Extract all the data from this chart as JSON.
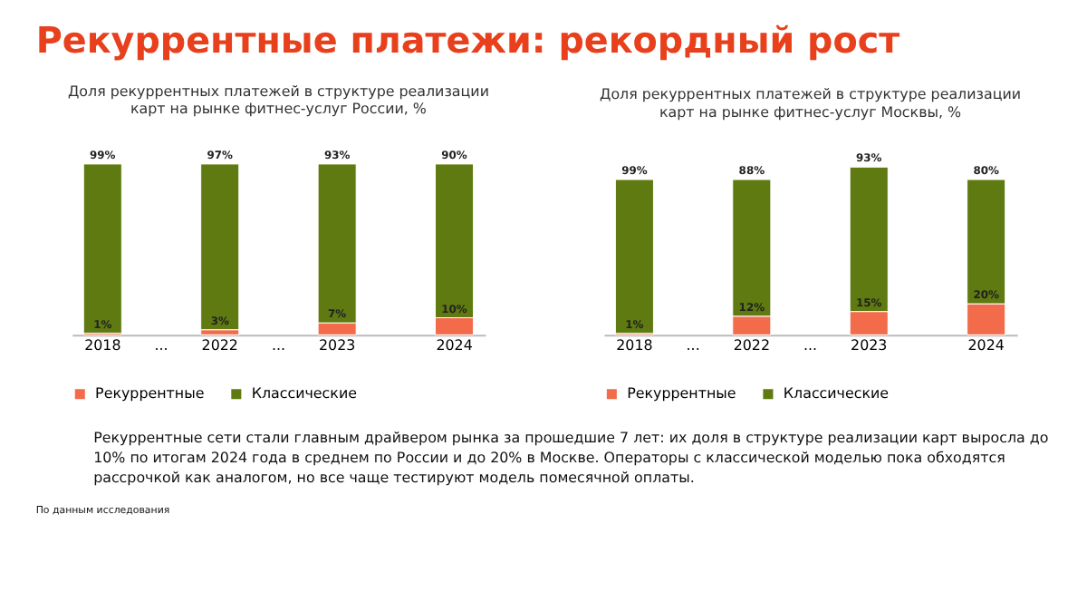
{
  "chart_data": [
    {
      "type": "other",
      "title": "Рекуррентные платежи: рекордный рост",
      "annotations": [
        "Рекуррентные сети стали главным драйвером рынка за прошедшие 7 лет: их доля в структуре реализации карт выросла до",
        "10% по итогам 2024 года в среднем по России и до 20% в Москве. Операторы с классической моделью пока обходятся",
        "рассрочкой как аналогом, но все чаще тестируют модель помесячной оплаты.",
        "По данным исследования"
      ]
    },
    {
      "type": "bar",
      "title": [
        "Доля рекуррентных платежей в структуре реализации",
        "карт на рынке фитнес-услуг России, %"
      ],
      "categories": [
        "2018",
        "...",
        "2022",
        "...",
        "2023",
        null,
        "2024"
      ],
      "stacked": true,
      "legend": "bottom",
      "grid": false,
      "series": [
        {
          "name": "Рекуррентные",
          "color": "#f26b4b",
          "values": [
            1,
            null,
            3,
            null,
            7,
            null,
            10
          ],
          "value_labels": [
            "1%",
            null,
            "3%",
            null,
            "7%",
            null,
            "10%"
          ]
        },
        {
          "name": "Классические",
          "color": "#5e7a10",
          "values": [
            99,
            null,
            97,
            null,
            93,
            null,
            90
          ],
          "value_labels": [
            "99%",
            null,
            "97%",
            null,
            "93%",
            null,
            "90%"
          ]
        }
      ]
    },
    {
      "type": "bar",
      "title": [
        "Доля рекуррентных платежей в структуре реализации",
        "карт на рынке фитнес-услуг Москвы, %"
      ],
      "categories": [
        "2018",
        "...",
        "2022",
        "...",
        "2023",
        null,
        "2024"
      ],
      "stacked": true,
      "legend": "bottom",
      "grid": false,
      "series": [
        {
          "name": "Рекуррентные",
          "color": "#f26b4b",
          "values": [
            1,
            null,
            12,
            null,
            15,
            null,
            20
          ],
          "value_labels": [
            "1%",
            null,
            "12%",
            null,
            "15%",
            null,
            "20%"
          ]
        },
        {
          "name": "Классические",
          "color": "#5e7a10",
          "values": [
            99,
            null,
            88,
            null,
            93,
            null,
            80
          ],
          "value_labels": [
            "99%",
            null,
            "88%",
            null,
            "93%",
            null,
            "80%"
          ]
        }
      ]
    }
  ]
}
